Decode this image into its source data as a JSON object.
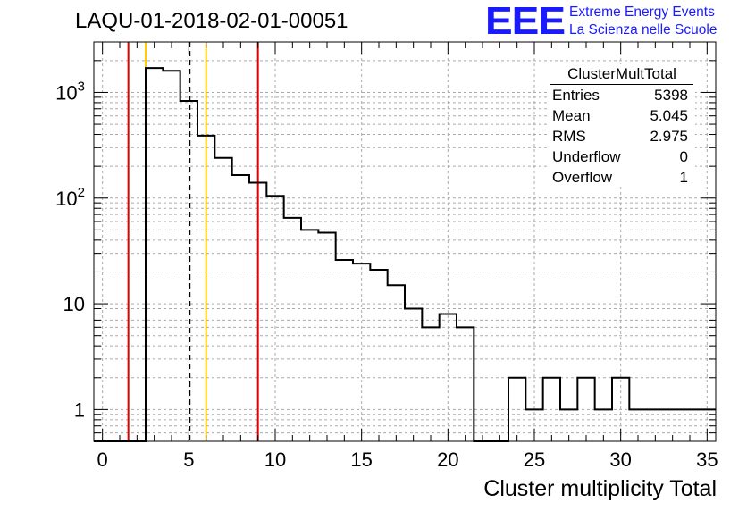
{
  "header": {
    "run_title": "LAQU-01-2018-02-01-00051"
  },
  "logo": {
    "mark": "EEE",
    "line1": "Extreme Energy Events",
    "line2": "La Scienza nelle Scuole",
    "color": "#1a1aff"
  },
  "stats_box": {
    "name": "ClusterMultTotal",
    "rows": [
      {
        "label": "Entries",
        "value": "5398"
      },
      {
        "label": "Mean",
        "value": "5.045"
      },
      {
        "label": "RMS",
        "value": "2.975"
      },
      {
        "label": "Underflow",
        "value": "0"
      },
      {
        "label": "Overflow",
        "value": "1"
      }
    ]
  },
  "chart_data": {
    "type": "bar",
    "histogram_style": "step",
    "xlabel": "Cluster multiplicity Total",
    "ylabel": "",
    "xlim": [
      -0.5,
      35.5
    ],
    "ylim": [
      0.5,
      3000
    ],
    "y_scale": "log",
    "grid": true,
    "x_ticks": [
      0,
      5,
      10,
      15,
      20,
      25,
      30,
      35
    ],
    "y_ticks": [
      {
        "value": 1,
        "label": "1"
      },
      {
        "value": 10,
        "label": "10"
      },
      {
        "value": 100,
        "label": "10^2"
      },
      {
        "value": 1000,
        "label": "10^3"
      }
    ],
    "bin_width": 1,
    "bin_centers": [
      0,
      1,
      2,
      3,
      4,
      5,
      6,
      7,
      8,
      9,
      10,
      11,
      12,
      13,
      14,
      15,
      16,
      17,
      18,
      19,
      20,
      21,
      22,
      23,
      24,
      25,
      26,
      27,
      28,
      29,
      30,
      31,
      32,
      33,
      34,
      35
    ],
    "counts": [
      0,
      0,
      0,
      1700,
      1600,
      830,
      390,
      240,
      165,
      140,
      105,
      65,
      50,
      47,
      26,
      24,
      21,
      15,
      9,
      6,
      8,
      6,
      0,
      0,
      2,
      1,
      2,
      1,
      2,
      1,
      2,
      1,
      1,
      1,
      1,
      1
    ],
    "vertical_lines": [
      {
        "x": 1.5,
        "color": "#e00000",
        "style": "solid"
      },
      {
        "x": 2.5,
        "color": "#ffcc00",
        "style": "solid"
      },
      {
        "x": 5.045,
        "color": "#000000",
        "style": "dashed"
      },
      {
        "x": 6.0,
        "color": "#ffcc00",
        "style": "solid"
      },
      {
        "x": 9.0,
        "color": "#e00000",
        "style": "solid"
      }
    ],
    "line_color": "#000000"
  }
}
